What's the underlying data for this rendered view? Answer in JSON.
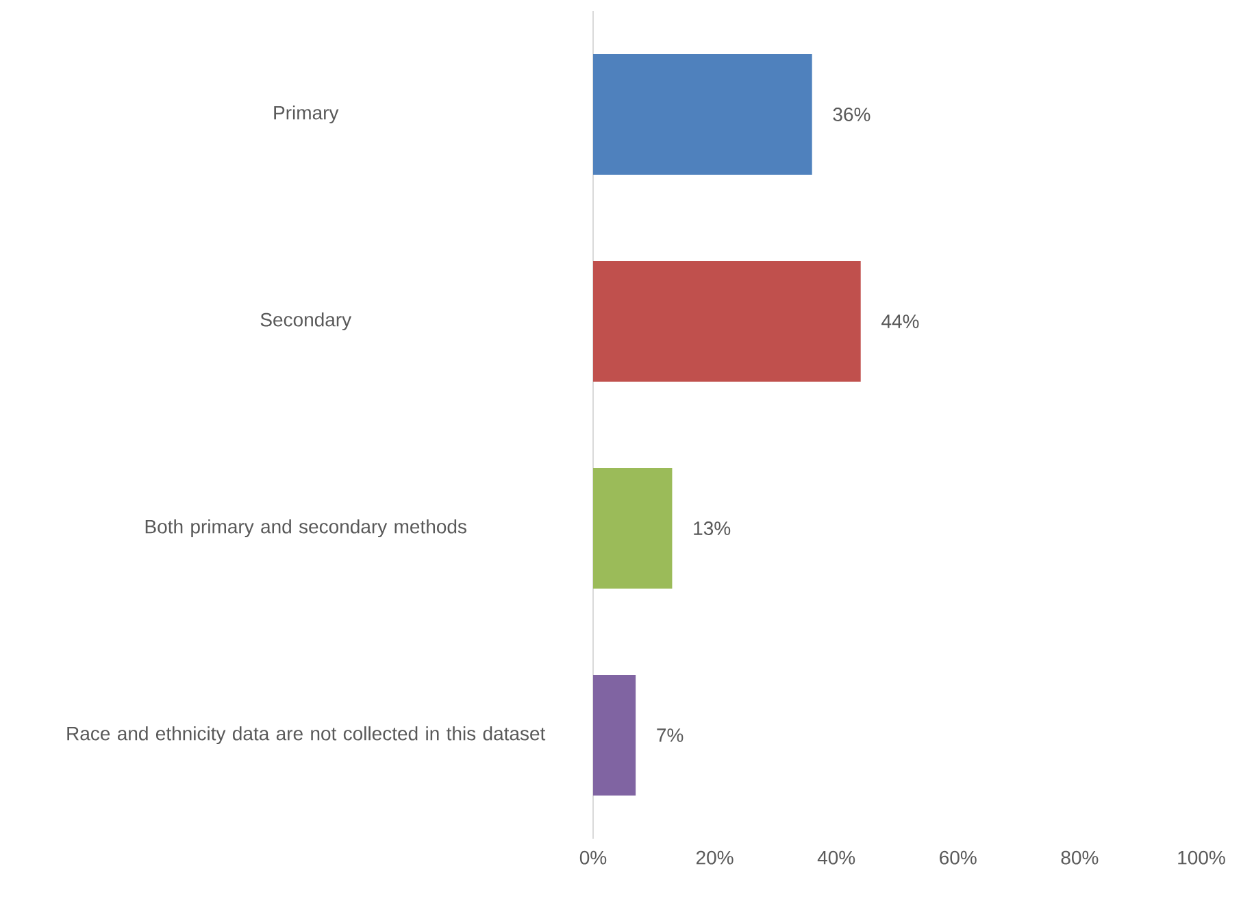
{
  "chart_data": {
    "type": "bar",
    "orientation": "horizontal",
    "categories": [
      "Primary",
      "Secondary",
      "Both primary and secondary methods",
      "Race and ethnicity data are not collected in this dataset"
    ],
    "values": [
      36,
      44,
      13,
      7
    ],
    "colors": [
      "#4f81bd",
      "#c0504d",
      "#9bbb59",
      "#8064a2"
    ],
    "value_labels": [
      "36%",
      "44%",
      "13%",
      "7%"
    ],
    "xlim": [
      0,
      100
    ],
    "xticks": [
      {
        "value": 0,
        "label": "0%"
      },
      {
        "value": 20,
        "label": "20%"
      },
      {
        "value": 40,
        "label": "40%"
      },
      {
        "value": 60,
        "label": "60%"
      },
      {
        "value": 80,
        "label": "80%"
      },
      {
        "value": 100,
        "label": "100%"
      }
    ]
  }
}
